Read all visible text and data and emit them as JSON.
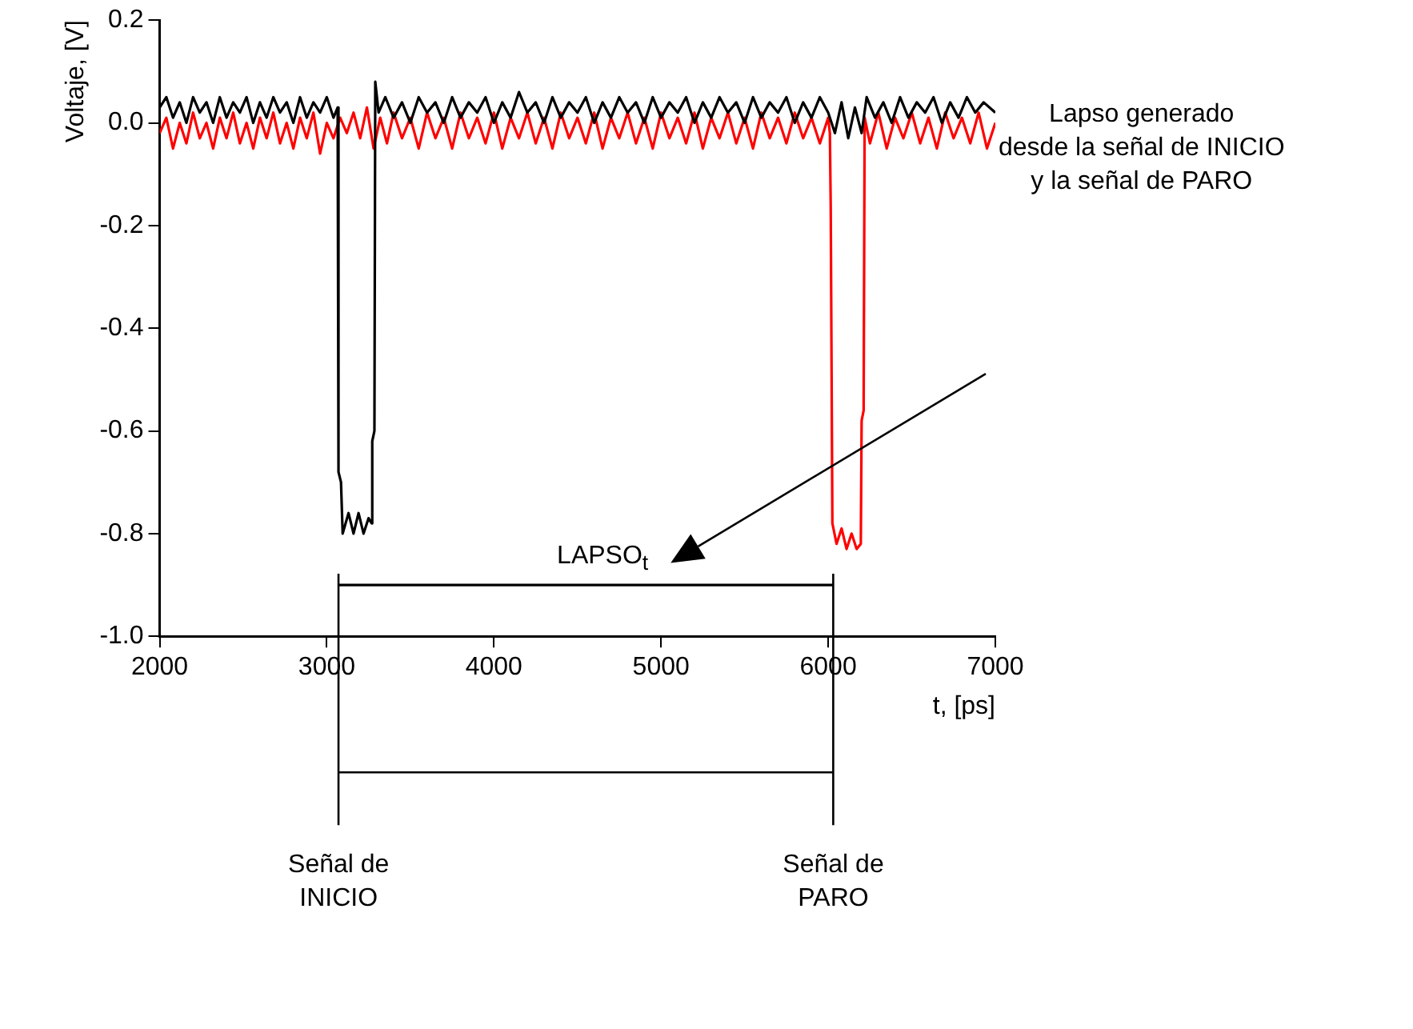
{
  "chart_data": {
    "type": "line",
    "xlabel": "t, [ps]",
    "ylabel": "Voltaje, [V]",
    "xlim": [
      2000,
      7000
    ],
    "xticks": [
      2000,
      3000,
      4000,
      5000,
      6000,
      7000
    ],
    "ylim": [
      -1.0,
      0.2
    ],
    "yticks": [
      {
        "value": -1.0,
        "label": "-1.0"
      },
      -0.8,
      -0.6,
      -0.4,
      -0.2,
      {
        "value": 0,
        "label": "0.0"
      },
      0.2
    ],
    "grid": false,
    "legend": false,
    "series": [
      {
        "color": "#000000",
        "x": [
          2000,
          2040,
          2080,
          2120,
          2160,
          2200,
          2240,
          2280,
          2320,
          2360,
          2400,
          2440,
          2480,
          2520,
          2560,
          2600,
          2640,
          2680,
          2720,
          2760,
          2800,
          2840,
          2880,
          2920,
          2960,
          3000,
          3040,
          3065,
          3070,
          3085,
          3095,
          3130,
          3160,
          3190,
          3220,
          3250,
          3268,
          3272,
          3285,
          3290,
          3310,
          3350,
          3400,
          3450,
          3500,
          3550,
          3600,
          3650,
          3700,
          3750,
          3800,
          3850,
          3900,
          3950,
          4000,
          4050,
          4100,
          4150,
          4200,
          4250,
          4300,
          4350,
          4400,
          4450,
          4500,
          4550,
          4600,
          4650,
          4700,
          4750,
          4800,
          4850,
          4900,
          4950,
          5000,
          5050,
          5100,
          5150,
          5200,
          5250,
          5300,
          5350,
          5400,
          5450,
          5500,
          5550,
          5600,
          5650,
          5700,
          5750,
          5800,
          5850,
          5900,
          5950,
          6000,
          6040,
          6080,
          6120,
          6160,
          6200,
          6230,
          6280,
          6330,
          6380,
          6430,
          6480,
          6530,
          6580,
          6630,
          6680,
          6730,
          6780,
          6830,
          6880,
          6930,
          7000
        ],
        "values": [
          0.03,
          0.05,
          0.01,
          0.04,
          0.0,
          0.05,
          0.02,
          0.04,
          0.0,
          0.05,
          0.01,
          0.04,
          0.02,
          0.05,
          0.0,
          0.04,
          0.01,
          0.05,
          0.02,
          0.04,
          0.0,
          0.05,
          0.01,
          0.04,
          0.02,
          0.05,
          0.01,
          0.03,
          -0.68,
          -0.7,
          -0.8,
          -0.76,
          -0.8,
          -0.76,
          -0.8,
          -0.77,
          -0.78,
          -0.62,
          -0.6,
          0.08,
          0.02,
          0.05,
          0.01,
          0.04,
          0.0,
          0.05,
          0.02,
          0.04,
          0.0,
          0.05,
          0.01,
          0.04,
          0.02,
          0.05,
          0.0,
          0.04,
          0.01,
          0.06,
          0.02,
          0.04,
          0.0,
          0.05,
          0.01,
          0.04,
          0.02,
          0.05,
          0.0,
          0.04,
          0.01,
          0.05,
          0.02,
          0.04,
          0.0,
          0.05,
          0.01,
          0.04,
          0.02,
          0.05,
          0.0,
          0.04,
          0.01,
          0.05,
          0.02,
          0.04,
          0.0,
          0.05,
          0.01,
          0.04,
          0.02,
          0.05,
          0.0,
          0.04,
          0.01,
          0.05,
          0.02,
          -0.02,
          0.04,
          -0.03,
          0.03,
          -0.02,
          0.05,
          0.01,
          0.04,
          0.0,
          0.05,
          0.01,
          0.04,
          0.02,
          0.05,
          0.0,
          0.04,
          0.01,
          0.05,
          0.02,
          0.04,
          0.02
        ]
      },
      {
        "color": "#ff0000",
        "x": [
          2000,
          2040,
          2080,
          2120,
          2160,
          2200,
          2240,
          2280,
          2320,
          2360,
          2400,
          2440,
          2480,
          2520,
          2560,
          2600,
          2640,
          2680,
          2720,
          2760,
          2800,
          2840,
          2880,
          2920,
          2960,
          3000,
          3040,
          3080,
          3120,
          3160,
          3200,
          3240,
          3280,
          3320,
          3360,
          3400,
          3450,
          3500,
          3550,
          3600,
          3650,
          3700,
          3750,
          3800,
          3850,
          3900,
          3950,
          4000,
          4050,
          4100,
          4150,
          4200,
          4250,
          4300,
          4350,
          4400,
          4450,
          4500,
          4550,
          4600,
          4650,
          4700,
          4750,
          4800,
          4850,
          4900,
          4950,
          5000,
          5050,
          5100,
          5150,
          5200,
          5250,
          5300,
          5350,
          5400,
          5450,
          5500,
          5550,
          5600,
          5650,
          5700,
          5750,
          5800,
          5850,
          5900,
          5950,
          6000,
          6010,
          6015,
          6025,
          6050,
          6080,
          6110,
          6140,
          6170,
          6195,
          6200,
          6212,
          6218,
          6250,
          6300,
          6350,
          6400,
          6450,
          6500,
          6550,
          6600,
          6650,
          6700,
          6750,
          6800,
          6850,
          6900,
          6950,
          7000
        ],
        "values": [
          -0.02,
          0.01,
          -0.05,
          0.0,
          -0.04,
          0.02,
          -0.03,
          0.0,
          -0.05,
          0.01,
          -0.03,
          0.02,
          -0.04,
          0.0,
          -0.05,
          0.01,
          -0.03,
          0.02,
          -0.04,
          0.0,
          -0.05,
          0.01,
          -0.03,
          0.02,
          -0.06,
          0.0,
          -0.03,
          0.01,
          -0.02,
          0.02,
          -0.03,
          0.03,
          -0.05,
          0.01,
          -0.04,
          0.02,
          -0.03,
          0.01,
          -0.05,
          0.02,
          -0.03,
          0.01,
          -0.05,
          0.02,
          -0.03,
          0.01,
          -0.04,
          0.02,
          -0.05,
          0.01,
          -0.03,
          0.02,
          -0.04,
          0.01,
          -0.05,
          0.02,
          -0.03,
          0.01,
          -0.04,
          0.02,
          -0.05,
          0.01,
          -0.03,
          0.02,
          -0.04,
          0.01,
          -0.05,
          0.02,
          -0.03,
          0.01,
          -0.04,
          0.02,
          -0.05,
          0.01,
          -0.03,
          0.02,
          -0.04,
          0.01,
          -0.05,
          0.02,
          -0.03,
          0.01,
          -0.04,
          0.02,
          -0.03,
          0.01,
          -0.04,
          0.01,
          -0.02,
          -0.16,
          -0.78,
          -0.82,
          -0.79,
          -0.83,
          -0.8,
          -0.83,
          -0.82,
          -0.58,
          -0.56,
          0.01,
          -0.04,
          0.02,
          -0.05,
          0.01,
          -0.03,
          0.02,
          -0.04,
          0.01,
          -0.05,
          0.02,
          -0.03,
          0.01,
          -0.04,
          0.02,
          -0.05,
          0.0
        ]
      },
      {
        "color": "#000000",
        "x": [
          3070,
          6030
        ],
        "values": [
          -0.9,
          -0.9
        ]
      }
    ],
    "annotations": [
      "Lapso generado\ndesde la señal de INICIO\ny la señal de PARO",
      {
        "text": "LAPSO$_{t}$",
        "x": 4650,
        "y": -0.9
      },
      {
        "text": "Señal de\nINICIO",
        "x": 3070,
        "y": -0.9
      },
      {
        "text": "Señal de\nPARO",
        "x": 6030,
        "y": -0.9
      }
    ]
  }
}
